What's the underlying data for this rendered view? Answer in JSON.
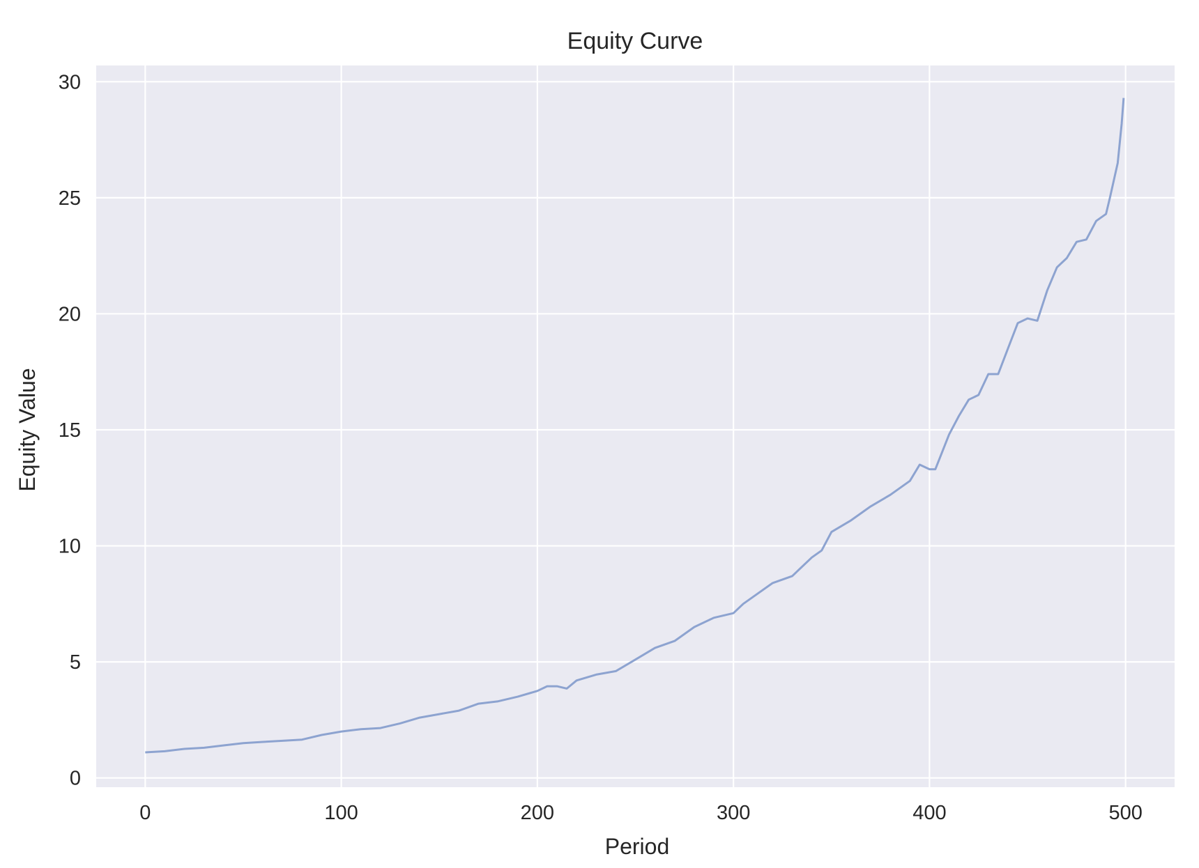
{
  "chart_data": {
    "type": "line",
    "title": "Equity Curve",
    "xlabel": "Period",
    "ylabel": "Equity Value",
    "xlim": [
      -25,
      525
    ],
    "ylim": [
      -0.4,
      30.7
    ],
    "xticks": [
      0,
      100,
      200,
      300,
      400,
      500
    ],
    "yticks": [
      0,
      5,
      10,
      15,
      20,
      25,
      30
    ],
    "grid": true,
    "background_color": "#EAEAF2",
    "grid_color": "#FFFFFF",
    "line_color": "#8DA3D0",
    "series": [
      {
        "x": [
          0,
          10,
          20,
          30,
          40,
          50,
          60,
          70,
          80,
          90,
          100,
          110,
          120,
          130,
          140,
          150,
          160,
          170,
          180,
          190,
          200,
          205,
          210,
          215,
          220,
          230,
          240,
          250,
          260,
          270,
          280,
          290,
          300,
          305,
          310,
          320,
          330,
          340,
          345,
          350,
          360,
          370,
          380,
          390,
          395,
          400,
          403,
          410,
          415,
          420,
          425,
          430,
          435,
          440,
          445,
          450,
          455,
          460,
          465,
          470,
          475,
          480,
          485,
          490,
          492,
          496,
          498,
          499
        ],
        "y": [
          1.1,
          1.15,
          1.25,
          1.3,
          1.4,
          1.5,
          1.55,
          1.6,
          1.65,
          1.85,
          2.0,
          2.1,
          2.15,
          2.35,
          2.6,
          2.75,
          2.9,
          3.2,
          3.3,
          3.5,
          3.75,
          3.95,
          3.95,
          3.85,
          4.2,
          4.45,
          4.6,
          5.1,
          5.6,
          5.9,
          6.5,
          6.9,
          7.1,
          7.5,
          7.8,
          8.4,
          8.7,
          9.5,
          9.8,
          10.6,
          11.1,
          11.7,
          12.2,
          12.8,
          13.5,
          13.3,
          13.3,
          14.8,
          15.6,
          16.3,
          16.5,
          17.4,
          17.4,
          18.5,
          19.6,
          19.8,
          19.7,
          21.0,
          22.0,
          22.4,
          23.1,
          23.2,
          24.0,
          24.3,
          25.0,
          26.5,
          28.2,
          29.3
        ]
      }
    ]
  }
}
